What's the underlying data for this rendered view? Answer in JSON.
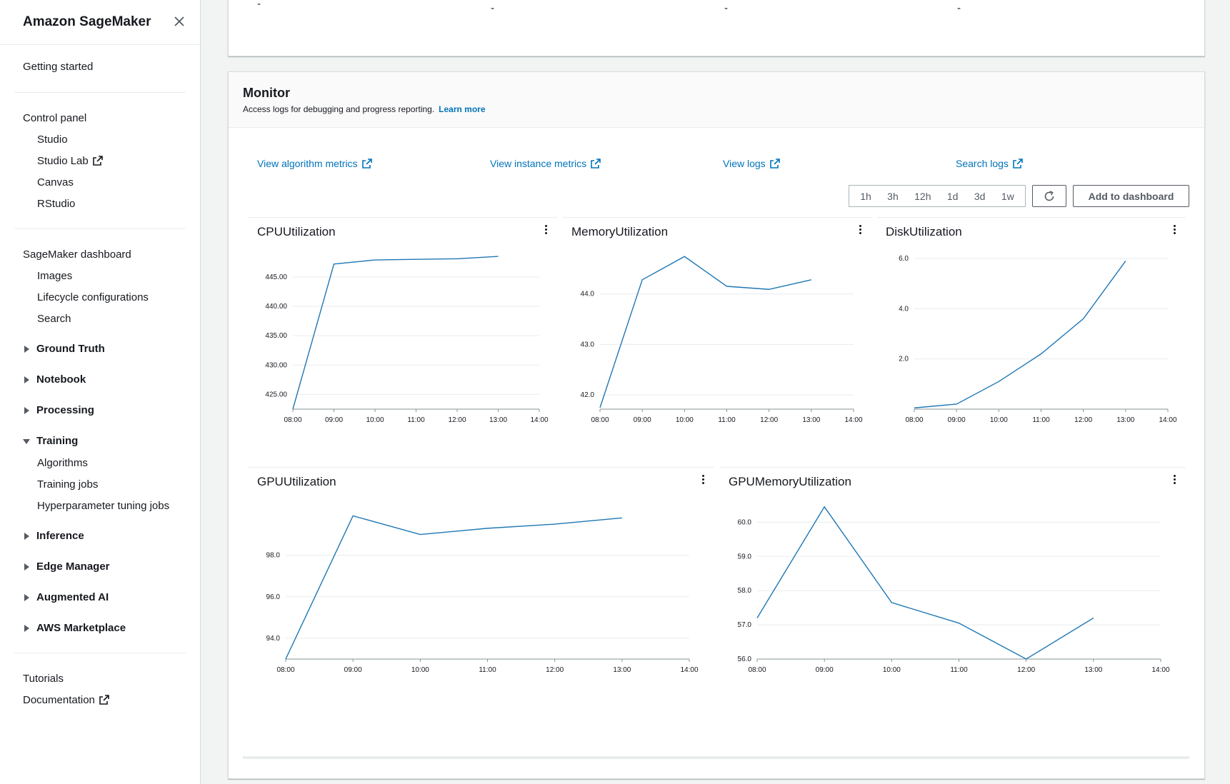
{
  "sidebar": {
    "title": "Amazon SageMaker",
    "getting_started": "Getting started",
    "control_panel": "Control panel",
    "studio": "Studio",
    "studio_lab": "Studio Lab",
    "canvas": "Canvas",
    "rstudio": "RStudio",
    "dashboard": "SageMaker dashboard",
    "images": "Images",
    "lifecycle": "Lifecycle configurations",
    "search": "Search",
    "ground_truth": "Ground Truth",
    "notebook": "Notebook",
    "processing": "Processing",
    "training": "Training",
    "algorithms": "Algorithms",
    "training_jobs": "Training jobs",
    "hpo_jobs": "Hyperparameter tuning jobs",
    "inference": "Inference",
    "edge_manager": "Edge Manager",
    "augmented_ai": "Augmented AI",
    "marketplace": "AWS Marketplace",
    "tutorials": "Tutorials",
    "documentation": "Documentation"
  },
  "top_panel": {
    "dashes": [
      "-",
      "-",
      "-",
      "-"
    ]
  },
  "monitor": {
    "title": "Monitor",
    "description": "Access logs for debugging and progress reporting.",
    "learn_more": "Learn more",
    "links": {
      "algorithm_metrics": "View algorithm metrics",
      "instance_metrics": "View instance metrics",
      "logs": "View logs",
      "search_logs": "Search logs"
    },
    "time_ranges": [
      "1h",
      "3h",
      "12h",
      "1d",
      "3d",
      "1w"
    ],
    "add_to_dashboard": "Add to dashboard"
  },
  "colors": {
    "link": "#0073bb",
    "series": "#1f77b4"
  },
  "chart_data": [
    {
      "type": "line",
      "title": "CPUUtilization",
      "x": [
        "08:00",
        "09:00",
        "10:00",
        "11:00",
        "12:00",
        "13:00"
      ],
      "x_ticks": [
        "08:00",
        "09:00",
        "10:00",
        "11:00",
        "12:00",
        "13:00",
        "14:00"
      ],
      "values": [
        422.5,
        447.2,
        447.9,
        448.0,
        448.1,
        448.5
      ],
      "y_ticks": [
        "425.00",
        "430.00",
        "435.00",
        "440.00",
        "445.00"
      ],
      "ylim": [
        422.5,
        449
      ]
    },
    {
      "type": "line",
      "title": "MemoryUtilization",
      "x": [
        "08:00",
        "09:00",
        "10:00",
        "11:00",
        "12:00",
        "13:00"
      ],
      "x_ticks": [
        "08:00",
        "09:00",
        "10:00",
        "11:00",
        "12:00",
        "13:00",
        "14:00"
      ],
      "values": [
        41.75,
        44.28,
        44.74,
        44.15,
        44.09,
        44.28
      ],
      "y_ticks": [
        "42.0",
        "43.0",
        "44.0"
      ],
      "ylim": [
        41.72,
        44.8
      ]
    },
    {
      "type": "line",
      "title": "DiskUtilization",
      "x": [
        "08:00",
        "09:00",
        "10:00",
        "11:00",
        "12:00",
        "13:00"
      ],
      "x_ticks": [
        "08:00",
        "09:00",
        "10:00",
        "11:00",
        "12:00",
        "13:00",
        "14:00"
      ],
      "values": [
        0.05,
        0.2,
        1.1,
        2.2,
        3.6,
        5.9
      ],
      "y_ticks": [
        "2.0",
        "4.0",
        "6.0"
      ],
      "ylim": [
        0,
        6.2
      ]
    },
    {
      "type": "line",
      "title": "GPUUtilization",
      "x": [
        "08:00",
        "09:00",
        "10:00",
        "11:00",
        "12:00",
        "13:00"
      ],
      "x_ticks": [
        "08:00",
        "09:00",
        "10:00",
        "11:00",
        "12:00",
        "13:00",
        "14:00"
      ],
      "values": [
        93.0,
        99.9,
        99.0,
        99.3,
        99.5,
        99.8
      ],
      "y_ticks": [
        "94.0",
        "96.0",
        "98.0"
      ],
      "ylim": [
        93.0,
        100.5
      ]
    },
    {
      "type": "line",
      "title": "GPUMemoryUtilization",
      "x": [
        "08:00",
        "09:00",
        "10:00",
        "11:00",
        "12:00",
        "13:00"
      ],
      "x_ticks": [
        "08:00",
        "09:00",
        "10:00",
        "11:00",
        "12:00",
        "13:00",
        "14:00"
      ],
      "values": [
        57.2,
        60.45,
        57.65,
        57.05,
        56.0,
        57.2
      ],
      "y_ticks": [
        "56.0",
        "57.0",
        "58.0",
        "59.0",
        "60.0"
      ],
      "ylim": [
        56.0,
        60.55
      ]
    }
  ]
}
